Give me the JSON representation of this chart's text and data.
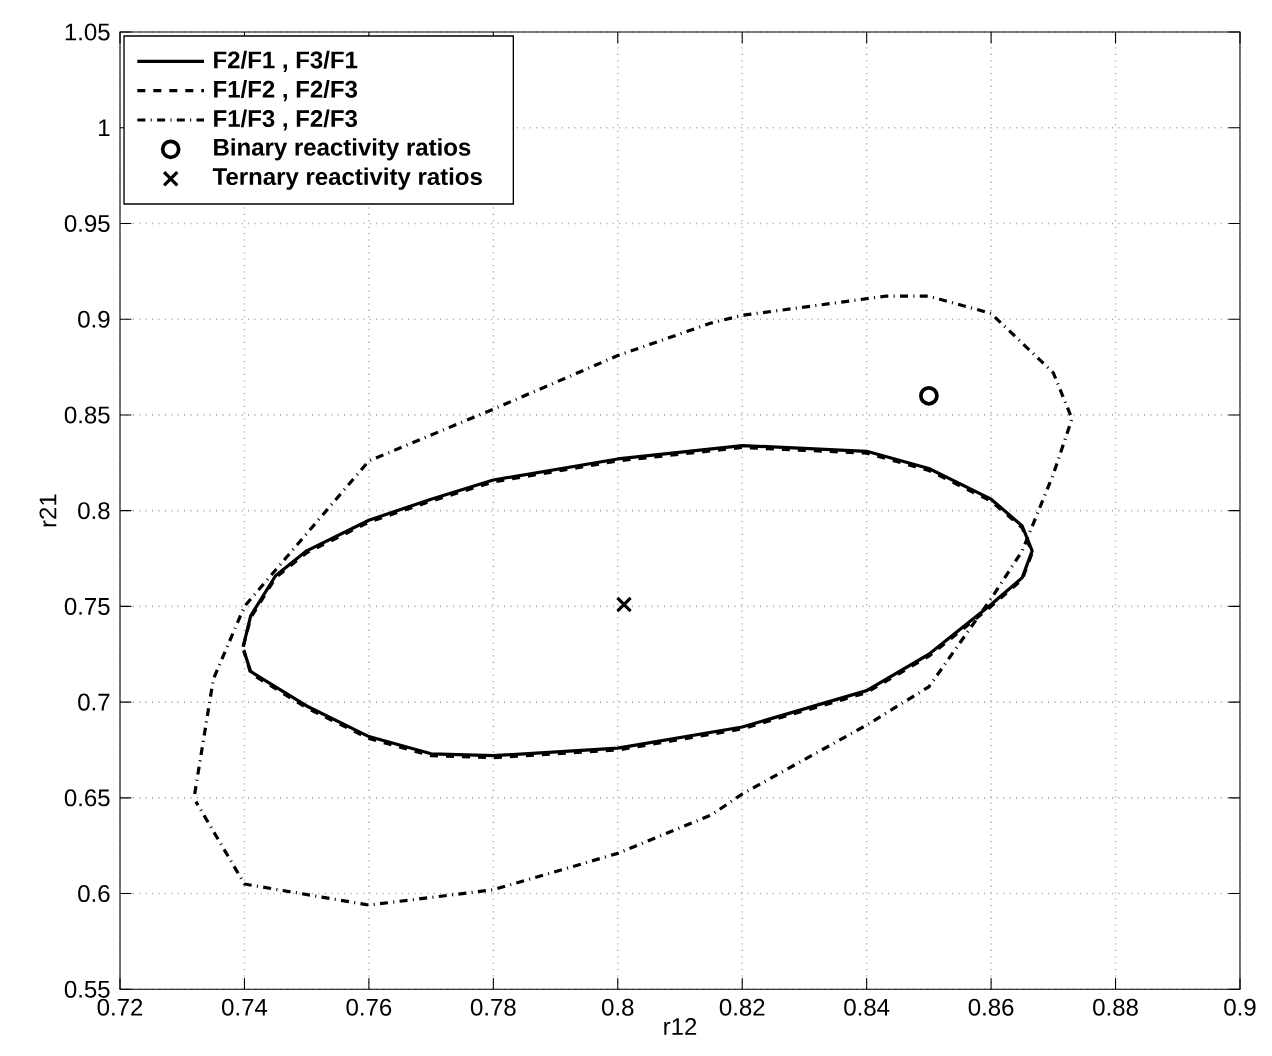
{
  "chart_data": {
    "type": "line",
    "xlabel": "r12",
    "ylabel": "r21",
    "xlim": [
      0.72,
      0.9
    ],
    "ylim": [
      0.55,
      1.05
    ],
    "xticks": [
      0.72,
      0.74,
      0.76,
      0.78,
      0.8,
      0.82,
      0.84,
      0.86,
      0.88,
      0.9
    ],
    "yticks": [
      0.55,
      0.6,
      0.65,
      0.7,
      0.75,
      0.8,
      0.85,
      0.9,
      0.95,
      1,
      1.05
    ],
    "grid": true,
    "legend": "top left",
    "series": [
      {
        "name": "F2/F1 , F3/F1",
        "type": "line",
        "color": "#000000",
        "line_style": "solid",
        "marker": "none",
        "x": [
          0.7398,
          0.741,
          0.745,
          0.75,
          0.76,
          0.77,
          0.78,
          0.8,
          0.82,
          0.84,
          0.85,
          0.86,
          0.865,
          0.8666,
          0.865,
          0.86,
          0.85,
          0.84,
          0.82,
          0.8,
          0.78,
          0.77,
          0.76,
          0.75,
          0.745,
          0.741,
          0.7399
        ],
        "values": [
          0.729,
          0.745,
          0.766,
          0.779,
          0.795,
          0.806,
          0.816,
          0.827,
          0.834,
          0.831,
          0.822,
          0.806,
          0.792,
          0.779,
          0.765,
          0.751,
          0.725,
          0.706,
          0.687,
          0.676,
          0.672,
          0.673,
          0.682,
          0.698,
          0.708,
          0.716,
          0.727
        ]
      },
      {
        "name": "F1/F2 , F2/F3",
        "type": "line",
        "color": "#000000",
        "line_style": "dashed",
        "marker": "none",
        "x": [
          0.7398,
          0.741,
          0.745,
          0.75,
          0.76,
          0.77,
          0.78,
          0.8,
          0.82,
          0.84,
          0.85,
          0.86,
          0.865,
          0.8666,
          0.865,
          0.86,
          0.85,
          0.84,
          0.82,
          0.8,
          0.78,
          0.77,
          0.76,
          0.75,
          0.745,
          0.741,
          0.7399
        ],
        "values": [
          0.729,
          0.744,
          0.765,
          0.778,
          0.794,
          0.805,
          0.815,
          0.826,
          0.833,
          0.83,
          0.821,
          0.805,
          0.791,
          0.778,
          0.764,
          0.75,
          0.724,
          0.705,
          0.686,
          0.675,
          0.671,
          0.672,
          0.681,
          0.697,
          0.707,
          0.715,
          0.727
        ]
      },
      {
        "name": "F1/F3 , F2/F3",
        "type": "line",
        "color": "#000000",
        "line_style": "dashdot",
        "marker": "none",
        "x": [
          0.732,
          0.735,
          0.74,
          0.76,
          0.78,
          0.8,
          0.815,
          0.82,
          0.843,
          0.85,
          0.86,
          0.87,
          0.873,
          0.87,
          0.865,
          0.86,
          0.85,
          0.84,
          0.82,
          0.815,
          0.8,
          0.78,
          0.76,
          0.74,
          0.7322
        ],
        "values": [
          0.652,
          0.712,
          0.75,
          0.826,
          0.853,
          0.881,
          0.898,
          0.902,
          0.912,
          0.912,
          0.903,
          0.872,
          0.848,
          0.819,
          0.779,
          0.754,
          0.708,
          0.688,
          0.652,
          0.641,
          0.621,
          0.602,
          0.594,
          0.605,
          0.648
        ]
      },
      {
        "name": "Binary reactivity ratios",
        "type": "scatter",
        "color": "#000000",
        "marker": "circle",
        "x": [
          0.85
        ],
        "values": [
          0.86
        ]
      },
      {
        "name": "Ternary reactivity ratios",
        "type": "scatter",
        "color": "#000000",
        "marker": "cross",
        "x": [
          0.801
        ],
        "values": [
          0.751
        ]
      }
    ]
  }
}
